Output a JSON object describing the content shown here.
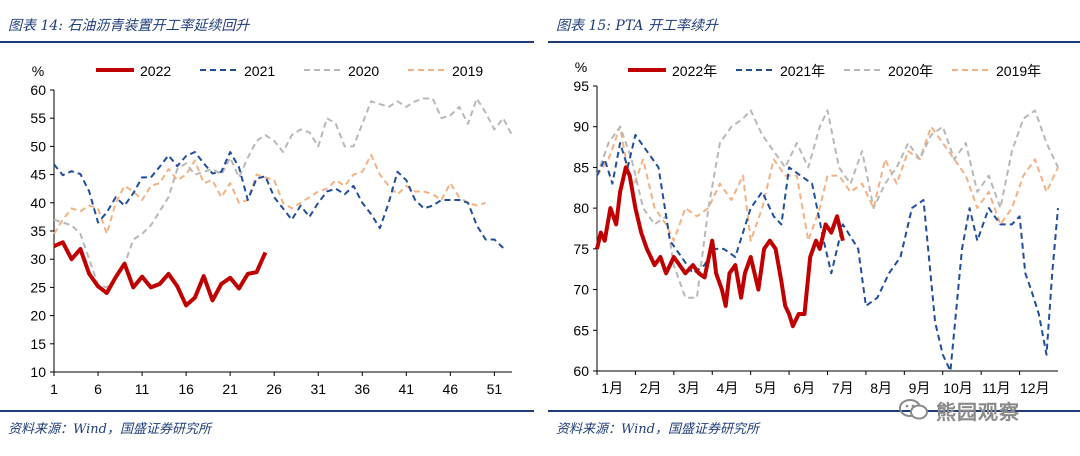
{
  "left": {
    "title": "图表 14: 石油沥青装置开工率延续回升",
    "source": "资料来源：Wind，国盛证券研究所"
  },
  "right": {
    "title": "图表 15: PTA 开工率续升",
    "source": "资料来源：Wind，国盛证券研究所"
  },
  "watermark": "熊园观察",
  "chart_data": [
    {
      "type": "line",
      "unit_label": "%",
      "ylim": [
        10,
        60
      ],
      "yticks": [
        10,
        15,
        20,
        25,
        30,
        35,
        40,
        45,
        50,
        55,
        60
      ],
      "xlim": [
        1,
        53
      ],
      "xticks": [
        1,
        6,
        11,
        16,
        21,
        26,
        31,
        36,
        41,
        46,
        51
      ],
      "legend_position": "top",
      "series": [
        {
          "name": "2022",
          "color": "#c00000",
          "dash": "solid",
          "width": 4,
          "x": [
            1,
            2,
            3,
            4,
            5,
            6,
            7,
            8,
            9,
            10,
            11,
            12,
            13,
            14,
            15,
            16,
            17,
            18,
            19,
            20,
            21,
            22,
            23,
            24,
            25
          ],
          "y": [
            32.3,
            33,
            30,
            31.8,
            27.4,
            25.2,
            24,
            26.8,
            29.2,
            25,
            26.9,
            25,
            25.6,
            27.4,
            25.2,
            21.8,
            23.2,
            27,
            22.7,
            25.6,
            26.7,
            24.8,
            27.4,
            27.7,
            31.2
          ]
        },
        {
          "name": "2021",
          "color": "#1f4e9b",
          "dash": "6,4",
          "width": 2,
          "x": [
            1,
            2,
            3,
            4,
            5,
            6,
            7,
            8,
            9,
            10,
            11,
            12,
            13,
            14,
            15,
            16,
            17,
            18,
            19,
            20,
            21,
            22,
            23,
            24,
            25,
            26,
            27,
            28,
            29,
            30,
            31,
            32,
            33,
            34,
            35,
            36,
            37,
            38,
            39,
            40,
            41,
            42,
            43,
            44,
            45,
            46,
            47,
            48,
            49,
            50,
            51,
            52
          ],
          "y": [
            46.8,
            44.9,
            45.6,
            45.1,
            42,
            36.5,
            38.3,
            41,
            39.5,
            41.7,
            44.5,
            44.5,
            46.4,
            48.4,
            46.5,
            48.3,
            49,
            47,
            45.2,
            45.5,
            49,
            46.3,
            40.5,
            44.3,
            44.7,
            41,
            39,
            37,
            39.5,
            37.5,
            40,
            42,
            42.5,
            41.5,
            43,
            40,
            38,
            35.5,
            40,
            45.5,
            44,
            40.5,
            39,
            39.5,
            40.5,
            40.5,
            40.5,
            40,
            36,
            33.5,
            33.5,
            32
          ]
        },
        {
          "name": "2020",
          "color": "#b8b8b8",
          "dash": "6,4",
          "width": 2,
          "x": [
            1,
            2,
            3,
            4,
            5,
            6,
            7,
            8,
            9,
            10,
            11,
            12,
            13,
            14,
            15,
            16,
            17,
            18,
            19,
            20,
            21,
            22,
            23,
            24,
            25,
            26,
            27,
            28,
            29,
            30,
            31,
            32,
            33,
            34,
            35,
            36,
            37,
            38,
            39,
            40,
            41,
            42,
            43,
            44,
            45,
            46,
            47,
            48,
            49,
            50,
            51,
            52,
            53
          ],
          "y": [
            37,
            36.5,
            36,
            34.5,
            30,
            25.5,
            25,
            26.5,
            29,
            33.5,
            34.5,
            36,
            38.5,
            41,
            46,
            47,
            45,
            45.5,
            46,
            45,
            48,
            44.5,
            48,
            51,
            52,
            51,
            49,
            52,
            53,
            52.5,
            50,
            55,
            54,
            50,
            50,
            54,
            58,
            57.5,
            57,
            58,
            57,
            58,
            58.5,
            58.5,
            55,
            55.5,
            57,
            54,
            58.5,
            56,
            53,
            55,
            52
          ]
        },
        {
          "name": "2019",
          "color": "#f4b183",
          "dash": "6,4",
          "width": 2,
          "x": [
            1,
            2,
            3,
            4,
            5,
            6,
            7,
            8,
            9,
            10,
            11,
            12,
            13,
            14,
            15,
            16,
            17,
            18,
            19,
            20,
            21,
            22,
            23,
            24,
            25,
            26,
            27,
            28,
            29,
            30,
            31,
            32,
            33,
            34,
            35,
            36,
            37,
            38,
            39,
            40,
            41,
            42,
            43,
            44,
            45,
            46,
            47,
            48,
            49,
            50
          ],
          "y": [
            34.5,
            37,
            39,
            38.5,
            39.5,
            39,
            34.5,
            40,
            43,
            42,
            40.5,
            43,
            43.5,
            46,
            44,
            45,
            47.5,
            43.5,
            44,
            41,
            43.5,
            40,
            40.5,
            45,
            44.5,
            44,
            40,
            39,
            40,
            41,
            42,
            42.5,
            44,
            43,
            45,
            45.5,
            48.5,
            45,
            43,
            41.5,
            43,
            42,
            42,
            41.5,
            40.5,
            43.5,
            41,
            40,
            39.5,
            40
          ]
        }
      ]
    },
    {
      "type": "line",
      "unit_label": "%",
      "ylim": [
        60,
        95
      ],
      "yticks": [
        60,
        65,
        70,
        75,
        80,
        85,
        90,
        95
      ],
      "xlim": [
        1,
        13
      ],
      "xticks": [
        "1月",
        "2月",
        "3月",
        "4月",
        "5月",
        "6月",
        "7月",
        "8月",
        "9月",
        "10月",
        "11月",
        "12月"
      ],
      "legend_position": "top",
      "series": [
        {
          "name": "2022年",
          "color": "#c00000",
          "dash": "solid",
          "width": 4,
          "x": [
            1,
            1.1,
            1.2,
            1.35,
            1.5,
            1.6,
            1.75,
            1.85,
            2,
            2.15,
            2.3,
            2.5,
            2.65,
            2.8,
            3,
            3.15,
            3.3,
            3.5,
            3.65,
            3.8,
            4,
            4.1,
            4.25,
            4.35,
            4.45,
            4.6,
            4.75,
            4.85,
            5,
            5.2,
            5.35,
            5.5,
            5.65,
            5.8,
            5.9,
            6,
            6.1,
            6.25,
            6.4,
            6.55,
            6.7,
            6.8,
            6.95,
            7.1,
            7.25,
            7.4
          ],
          "y": [
            75,
            77,
            76,
            80,
            78,
            82,
            85,
            84,
            80,
            77,
            75,
            73,
            74,
            72,
            74,
            73,
            72,
            73,
            72,
            71.5,
            76,
            72,
            70,
            68,
            72,
            73,
            69,
            72,
            74,
            70,
            75,
            76,
            75,
            71,
            68,
            67,
            65.5,
            67,
            67,
            74,
            76,
            75,
            78,
            77,
            79,
            76
          ]
        },
        {
          "name": "2021年",
          "color": "#1f4e9b",
          "dash": "6,4",
          "width": 2,
          "x": [
            1,
            1.2,
            1.4,
            1.6,
            1.8,
            2,
            2.3,
            2.6,
            2.9,
            3.2,
            3.5,
            3.8,
            4,
            4.3,
            4.6,
            5,
            5.3,
            5.6,
            5.8,
            6,
            6.3,
            6.6,
            6.9,
            7.1,
            7.4,
            7.8,
            8,
            8.3,
            8.6,
            8.9,
            9.2,
            9.5,
            9.8,
            10,
            10.2,
            10.3,
            10.5,
            10.7,
            10.9,
            11.2,
            11.5,
            11.8,
            12,
            12.15,
            12.3,
            12.5,
            12.7,
            12.85,
            13
          ],
          "y": [
            84,
            86,
            83,
            88,
            85,
            89,
            87,
            85,
            76,
            74,
            72,
            73,
            75,
            75,
            74,
            80,
            82,
            79,
            78,
            85,
            84,
            83,
            76,
            72,
            78,
            75,
            68,
            69,
            72,
            74,
            80,
            81,
            66,
            62,
            60,
            65,
            75,
            80,
            76,
            80,
            78,
            78,
            79,
            72,
            70,
            67,
            62,
            72,
            80
          ]
        },
        {
          "name": "2020年",
          "color": "#b8b8b8",
          "dash": "6,4",
          "width": 2,
          "x": [
            1,
            1.3,
            1.6,
            1.9,
            2.2,
            2.5,
            2.8,
            3,
            3.3,
            3.6,
            3.9,
            4.2,
            4.5,
            4.8,
            5,
            5.3,
            5.6,
            5.9,
            6.2,
            6.5,
            6.8,
            7,
            7.3,
            7.6,
            7.9,
            8.2,
            8.5,
            8.8,
            9.1,
            9.4,
            9.7,
            10,
            10.3,
            10.6,
            10.9,
            11.2,
            11.5,
            11.8,
            12.1,
            12.4,
            12.7,
            13
          ],
          "y": [
            84,
            88,
            90,
            86,
            80,
            78,
            79,
            73,
            69,
            69,
            80,
            88,
            90,
            91,
            92,
            89,
            87,
            85,
            88,
            85,
            90,
            92,
            85,
            83,
            87,
            80,
            83,
            85,
            88,
            86,
            89,
            90,
            86,
            88,
            82,
            84,
            80,
            87,
            91,
            92,
            88,
            85
          ]
        },
        {
          "name": "2019年",
          "color": "#f4b183",
          "dash": "6,4",
          "width": 2,
          "x": [
            1,
            1.3,
            1.6,
            1.9,
            2.2,
            2.5,
            2.8,
            3,
            3.3,
            3.6,
            3.9,
            4.2,
            4.5,
            4.8,
            5,
            5.3,
            5.6,
            5.9,
            6.2,
            6.5,
            6.8,
            7,
            7.3,
            7.6,
            7.9,
            8.2,
            8.5,
            8.8,
            9.1,
            9.4,
            9.7,
            10,
            10.3,
            10.6,
            10.9,
            11.2,
            11.5,
            11.8,
            12.1,
            12.4,
            12.7,
            13
          ],
          "y": [
            84,
            86,
            90,
            82,
            86,
            80,
            78,
            76,
            80,
            79,
            80,
            83,
            81,
            84,
            76,
            80,
            86,
            84,
            84,
            76,
            80,
            84,
            84,
            82,
            83,
            80,
            86,
            83,
            87,
            86,
            90,
            88,
            86,
            84,
            80,
            82,
            78,
            80,
            84,
            86,
            82,
            85
          ]
        }
      ]
    }
  ]
}
